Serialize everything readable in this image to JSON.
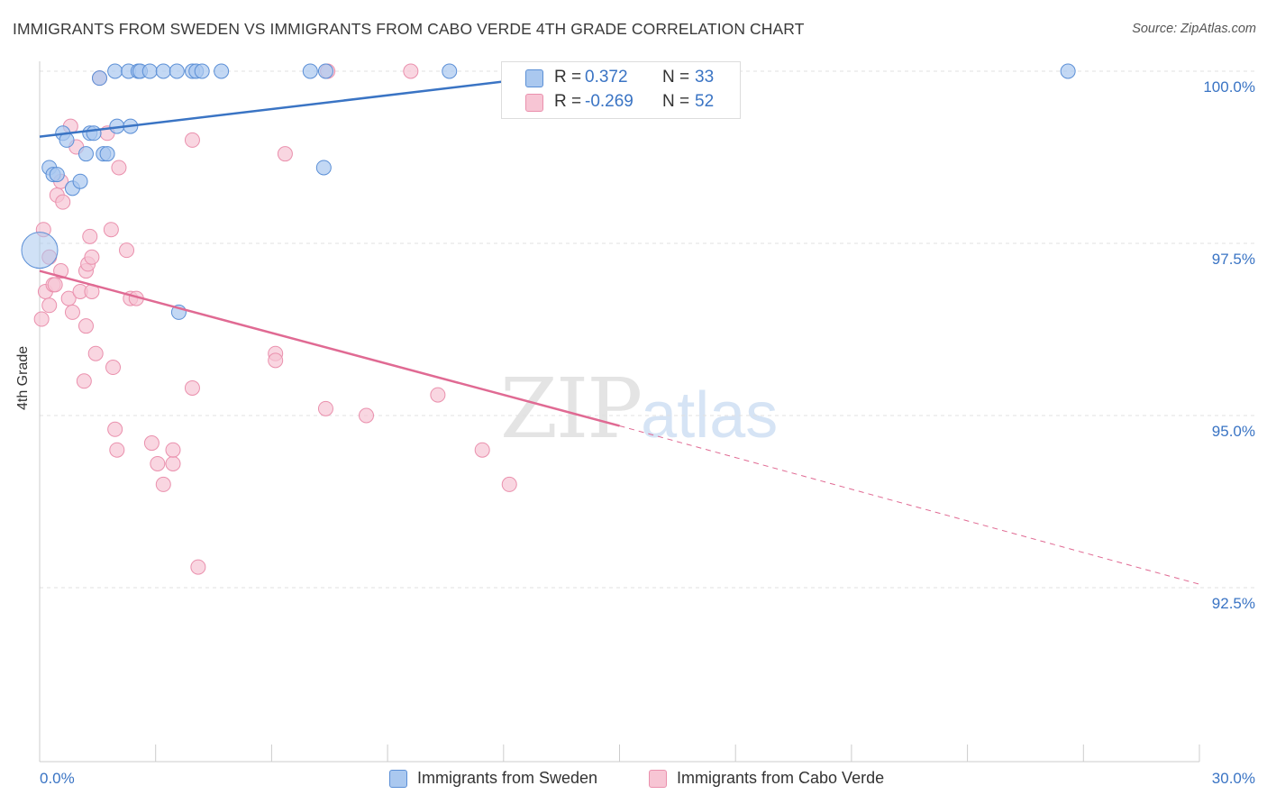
{
  "title": "IMMIGRANTS FROM SWEDEN VS IMMIGRANTS FROM CABO VERDE 4TH GRADE CORRELATION CHART",
  "source": "Source: ZipAtlas.com",
  "watermark": {
    "zip": "ZIP",
    "atlas": "atlas"
  },
  "legend": {
    "sweden": {
      "r_label": "R =",
      "r_value": "0.372",
      "n_label": "N =",
      "n_value": "33"
    },
    "cabo": {
      "r_label": "R =",
      "r_value": "-0.269",
      "n_label": "N =",
      "n_value": "52"
    }
  },
  "bottom_legend": {
    "sweden": "Immigrants from Sweden",
    "cabo": "Immigrants from Cabo Verde"
  },
  "colors": {
    "sweden_fill": "#aac8ef",
    "sweden_stroke": "#5b8fd6",
    "sweden_line": "#3a74c4",
    "cabo_fill": "#f7c5d4",
    "cabo_stroke": "#ea90ad",
    "cabo_line": "#e06a93",
    "grid": "#e0e0e0",
    "tick_text": "#3a74c4"
  },
  "chart_data": {
    "type": "scatter",
    "title": "IMMIGRANTS FROM SWEDEN VS IMMIGRANTS FROM CABO VERDE 4TH GRADE CORRELATION CHART",
    "xlabel": "",
    "ylabel": "4th Grade",
    "xlim": [
      0,
      30
    ],
    "ylim": [
      90.0,
      100.5
    ],
    "x_tick_labels": [
      "0.0%",
      "30.0%"
    ],
    "y_ticks": [
      92.5,
      95.0,
      97.5,
      100.0
    ],
    "y_tick_labels": [
      "92.5%",
      "95.0%",
      "97.5%",
      "100.0%"
    ],
    "grid": true,
    "legend_position": "top-center",
    "series": [
      {
        "name": "Immigrants from Sweden",
        "points": [
          [
            0.0,
            97.4
          ],
          [
            0.25,
            98.6
          ],
          [
            0.35,
            98.5
          ],
          [
            0.45,
            98.5
          ],
          [
            0.6,
            99.1
          ],
          [
            0.7,
            99.0
          ],
          [
            0.85,
            98.3
          ],
          [
            1.05,
            98.4
          ],
          [
            1.2,
            98.8
          ],
          [
            1.3,
            99.1
          ],
          [
            1.4,
            99.1
          ],
          [
            1.55,
            99.9
          ],
          [
            1.65,
            98.8
          ],
          [
            1.75,
            98.8
          ],
          [
            1.95,
            100.0
          ],
          [
            2.0,
            99.2
          ],
          [
            2.3,
            100.0
          ],
          [
            2.35,
            99.2
          ],
          [
            2.55,
            100.0
          ],
          [
            2.6,
            100.0
          ],
          [
            2.85,
            100.0
          ],
          [
            3.2,
            100.0
          ],
          [
            3.55,
            100.0
          ],
          [
            3.6,
            96.5
          ],
          [
            3.95,
            100.0
          ],
          [
            4.05,
            100.0
          ],
          [
            4.2,
            100.0
          ],
          [
            4.7,
            100.0
          ],
          [
            7.0,
            100.0
          ],
          [
            7.35,
            98.6
          ],
          [
            7.4,
            100.0
          ],
          [
            10.6,
            100.0
          ],
          [
            26.6,
            100.0
          ]
        ],
        "trend": {
          "x": [
            0,
            15
          ],
          "y": [
            99.05,
            100.05
          ],
          "style": "solid"
        }
      },
      {
        "name": "Immigrants from Cabo Verde",
        "points": [
          [
            0.05,
            96.4
          ],
          [
            0.1,
            97.7
          ],
          [
            0.15,
            96.8
          ],
          [
            0.25,
            97.3
          ],
          [
            0.25,
            96.6
          ],
          [
            0.35,
            96.9
          ],
          [
            0.4,
            96.9
          ],
          [
            0.45,
            98.2
          ],
          [
            0.55,
            97.1
          ],
          [
            0.55,
            98.4
          ],
          [
            0.6,
            98.1
          ],
          [
            0.75,
            96.7
          ],
          [
            0.8,
            99.2
          ],
          [
            0.85,
            96.5
          ],
          [
            0.95,
            98.9
          ],
          [
            1.05,
            96.8
          ],
          [
            1.2,
            97.1
          ],
          [
            1.15,
            95.5
          ],
          [
            1.2,
            96.3
          ],
          [
            1.25,
            97.2
          ],
          [
            1.35,
            97.3
          ],
          [
            1.35,
            96.8
          ],
          [
            1.3,
            97.6
          ],
          [
            1.45,
            95.9
          ],
          [
            1.55,
            99.9
          ],
          [
            1.75,
            99.1
          ],
          [
            1.85,
            97.7
          ],
          [
            1.9,
            95.7
          ],
          [
            1.95,
            94.8
          ],
          [
            2.0,
            94.5
          ],
          [
            2.05,
            98.6
          ],
          [
            2.25,
            97.4
          ],
          [
            2.35,
            96.7
          ],
          [
            2.5,
            96.7
          ],
          [
            2.9,
            94.6
          ],
          [
            3.05,
            94.3
          ],
          [
            3.2,
            94.0
          ],
          [
            3.45,
            94.3
          ],
          [
            3.45,
            94.5
          ],
          [
            3.95,
            99.0
          ],
          [
            3.95,
            95.4
          ],
          [
            4.1,
            92.8
          ],
          [
            6.1,
            95.9
          ],
          [
            6.1,
            95.8
          ],
          [
            6.35,
            98.8
          ],
          [
            7.45,
            100.0
          ],
          [
            7.4,
            95.1
          ],
          [
            8.45,
            95.0
          ],
          [
            9.6,
            100.0
          ],
          [
            10.3,
            95.3
          ],
          [
            11.45,
            94.5
          ],
          [
            12.15,
            94.0
          ]
        ],
        "trend": {
          "x": [
            0,
            15
          ],
          "y": [
            97.1,
            94.85
          ],
          "style": "solid"
        },
        "trend_extension": {
          "x": [
            15,
            30
          ],
          "y": [
            94.85,
            92.55
          ],
          "style": "dashed"
        }
      }
    ]
  }
}
